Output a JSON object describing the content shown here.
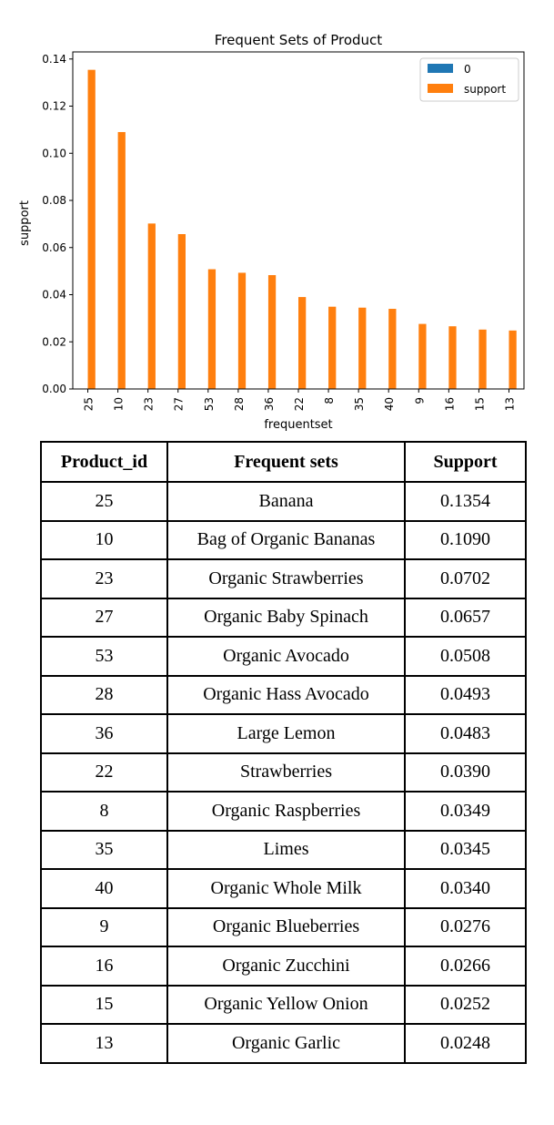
{
  "chart_data": {
    "type": "bar",
    "title": "Frequent Sets of Product",
    "xlabel": "frequentset",
    "ylabel": "support",
    "ylim": [
      0,
      0.143
    ],
    "yticks": [
      "0.00",
      "0.02",
      "0.04",
      "0.06",
      "0.08",
      "0.10",
      "0.12",
      "0.14"
    ],
    "categories": [
      "25",
      "10",
      "23",
      "27",
      "53",
      "28",
      "36",
      "22",
      "8",
      "35",
      "40",
      "9",
      "16",
      "15",
      "13"
    ],
    "series": [
      {
        "name": "0",
        "color": "#1f77b4",
        "values": [
          0,
          0,
          0,
          0,
          0,
          0,
          0,
          0,
          0,
          0,
          0,
          0,
          0,
          0,
          0
        ]
      },
      {
        "name": "support",
        "color": "#ff7f0e",
        "values": [
          0.1354,
          0.109,
          0.0702,
          0.0657,
          0.0508,
          0.0493,
          0.0483,
          0.039,
          0.0349,
          0.0345,
          0.034,
          0.0276,
          0.0266,
          0.0252,
          0.0248
        ]
      }
    ],
    "legend_position": "top-right",
    "grid": false
  },
  "table": {
    "headers": [
      "Product_id",
      "Frequent sets",
      "Support"
    ],
    "rows": [
      [
        "25",
        "Banana",
        "0.1354"
      ],
      [
        "10",
        "Bag of Organic Bananas",
        "0.1090"
      ],
      [
        "23",
        "Organic Strawberries",
        "0.0702"
      ],
      [
        "27",
        "Organic Baby Spinach",
        "0.0657"
      ],
      [
        "53",
        "Organic Avocado",
        "0.0508"
      ],
      [
        "28",
        "Organic Hass Avocado",
        "0.0493"
      ],
      [
        "36",
        "Large Lemon",
        "0.0483"
      ],
      [
        "22",
        "Strawberries",
        "0.0390"
      ],
      [
        "8",
        "Organic Raspberries",
        "0.0349"
      ],
      [
        "35",
        "Limes",
        "0.0345"
      ],
      [
        "40",
        "Organic Whole Milk",
        "0.0340"
      ],
      [
        "9",
        "Organic Blueberries",
        "0.0276"
      ],
      [
        "16",
        "Organic Zucchini",
        "0.0266"
      ],
      [
        "15",
        "Organic Yellow Onion",
        "0.0252"
      ],
      [
        "13",
        "Organic Garlic",
        "0.0248"
      ]
    ]
  }
}
